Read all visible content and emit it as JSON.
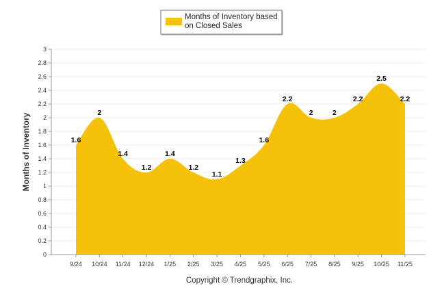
{
  "chart_data": {
    "type": "area",
    "legend": {
      "label_line1": "Months of Inventory based",
      "label_line2": "on Closed Sales",
      "position": "top-center"
    },
    "ylabel": "Months of Inventory",
    "ylim": [
      0,
      3
    ],
    "ytick_step": 0.2,
    "categories": [
      "9/24",
      "10/24",
      "11/24",
      "12/24",
      "1/25",
      "2/25",
      "3/25",
      "4/25",
      "5/25",
      "6/25",
      "7/25",
      "8/25",
      "9/25",
      "10/25",
      "11/25"
    ],
    "series": [
      {
        "name": "Months of Inventory based on Closed Sales",
        "values": [
          1.6,
          2,
          1.4,
          1.2,
          1.4,
          1.2,
          1.1,
          1.3,
          1.6,
          2.2,
          2,
          2,
          2.2,
          2.5,
          2.2
        ],
        "labels": [
          "1.6",
          "2",
          "1.4",
          "1.2",
          "1.4",
          "1.2",
          "1.1",
          "1.3",
          "1.6",
          "2.2",
          "2",
          "2",
          "2.2",
          "2.5",
          "2.2"
        ],
        "color": "#F5C10A"
      }
    ],
    "grid": true,
    "grid_color": "#EEEEEE",
    "footer": "Copyright © Trendgraphix, Inc."
  }
}
